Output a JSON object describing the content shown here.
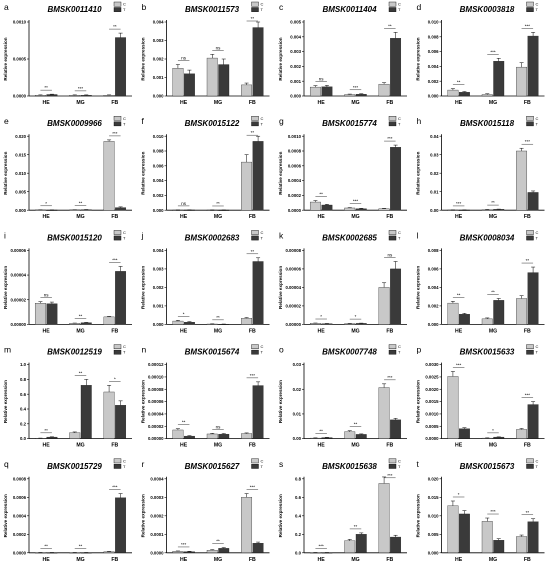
{
  "colors": {
    "control_bar": "#c8c8c8",
    "treatment_bar": "#3a3a3a",
    "axis": "#000000",
    "text": "#000000"
  },
  "legend": [
    "C",
    "T"
  ],
  "chart_data": [
    {
      "type": "bar",
      "panel_label": "a",
      "title": "BMSK0011410",
      "ylabel": "Relative expression",
      "categories": [
        "HE",
        "MG",
        "FB"
      ],
      "ylim": [
        0,
        0.001
      ],
      "ytick_labels": [
        "0.0000",
        "0.0005",
        "0.0010"
      ],
      "series": [
        {
          "name": "C",
          "values": [
            1e-05,
            1e-05,
            1e-05
          ],
          "errors": [
            5e-06,
            5e-06,
            5e-06
          ]
        },
        {
          "name": "T",
          "values": [
            2e-05,
            1e-05,
            0.00079
          ],
          "errors": [
            5e-06,
            5e-06,
            6e-05
          ]
        }
      ],
      "significance": [
        "**",
        "***",
        "**"
      ]
    },
    {
      "type": "bar",
      "panel_label": "b",
      "title": "BMSK0011573",
      "ylabel": "Relative expression",
      "categories": [
        "HE",
        "MG",
        "FB"
      ],
      "ylim": [
        0,
        0.004
      ],
      "ytick_labels": [
        "0.000",
        "0.001",
        "0.002",
        "0.003",
        "0.004"
      ],
      "series": [
        {
          "name": "C",
          "values": [
            0.0015,
            0.00205,
            0.0006
          ],
          "errors": [
            0.0002,
            0.0002,
            0.0001
          ]
        },
        {
          "name": "T",
          "values": [
            0.0012,
            0.0017,
            0.0037
          ],
          "errors": [
            0.0002,
            0.0003,
            0.0003
          ]
        }
      ],
      "significance": [
        "ns",
        "ns",
        "**"
      ]
    },
    {
      "type": "bar",
      "panel_label": "c",
      "title": "BMSK0011404",
      "ylabel": "Relative expression",
      "categories": [
        "HE",
        "MG",
        "FB"
      ],
      "ylim": [
        0,
        0.005
      ],
      "ytick_labels": [
        "0.000",
        "0.001",
        "0.002",
        "0.003",
        "0.004",
        "0.005"
      ],
      "series": [
        {
          "name": "C",
          "values": [
            0.0006,
            0.0001,
            0.0008
          ],
          "errors": [
            0.0001,
            3e-05,
            0.0001
          ]
        },
        {
          "name": "T",
          "values": [
            0.00062,
            0.00012,
            0.0039
          ],
          "errors": [
            0.0001,
            3e-05,
            0.0004
          ]
        }
      ],
      "significance": [
        "ns",
        "***",
        "**"
      ]
    },
    {
      "type": "bar",
      "panel_label": "d",
      "title": "BMSK0003818",
      "ylabel": "Relative expression",
      "categories": [
        "HE",
        "MG",
        "FB"
      ],
      "ylim": [
        0,
        0.01
      ],
      "ytick_labels": [
        "0.000",
        "0.002",
        "0.004",
        "0.006",
        "0.008",
        "0.010"
      ],
      "series": [
        {
          "name": "C",
          "values": [
            0.0008,
            0.0002,
            0.0039
          ],
          "errors": [
            0.0002,
            0.0001,
            0.0006
          ]
        },
        {
          "name": "T",
          "values": [
            0.0005,
            0.0047,
            0.0081
          ],
          "errors": [
            0.0001,
            0.0004,
            0.0005
          ]
        }
      ],
      "significance": [
        "**",
        "***",
        "***"
      ]
    },
    {
      "type": "bar",
      "panel_label": "e",
      "title": "BMSK0009966",
      "ylabel": "Relative expression",
      "categories": [
        "HE",
        "MG",
        "FB"
      ],
      "ylim": [
        0,
        0.02
      ],
      "ytick_labels": [
        "0.000",
        "0.005",
        "0.010",
        "0.015",
        "0.020"
      ],
      "series": [
        {
          "name": "C",
          "values": [
            8e-05,
            0.0001,
            0.0186
          ],
          "errors": [
            3e-05,
            3e-05,
            0.0004
          ]
        },
        {
          "name": "T",
          "values": [
            5e-05,
            0.00015,
            0.0007
          ],
          "errors": [
            2e-05,
            3e-05,
            0.0002
          ]
        }
      ],
      "significance": [
        "*",
        "**",
        "***"
      ]
    },
    {
      "type": "bar",
      "panel_label": "f",
      "title": "BMSK0015122",
      "ylabel": "Relative expression",
      "categories": [
        "HE",
        "MG",
        "FB"
      ],
      "ylim": [
        0,
        0.01
      ],
      "ytick_labels": [
        "0.000",
        "0.002",
        "0.004",
        "0.006",
        "0.008",
        "0.010"
      ],
      "series": [
        {
          "name": "C",
          "values": [
            2e-05,
            2e-05,
            0.0065
          ],
          "errors": [
            1e-05,
            1e-05,
            0.001
          ]
        },
        {
          "name": "T",
          "values": [
            3e-05,
            2e-05,
            0.0093
          ],
          "errors": [
            1e-05,
            1e-05,
            0.0007
          ]
        }
      ],
      "significance": [
        "ns",
        "**",
        "**"
      ]
    },
    {
      "type": "bar",
      "panel_label": "g",
      "title": "BMSK0015774",
      "ylabel": "Relative expression",
      "categories": [
        "HE",
        "MG",
        "FB"
      ],
      "ylim": [
        0,
        0.001
      ],
      "ytick_labels": [
        "0.0000",
        "0.0002",
        "0.0004",
        "0.0006",
        "0.0008",
        "0.0010"
      ],
      "series": [
        {
          "name": "C",
          "values": [
            0.00011,
            3e-05,
            2e-05
          ],
          "errors": [
            2e-05,
            5e-06,
            5e-06
          ]
        },
        {
          "name": "T",
          "values": [
            7e-05,
            2e-05,
            0.00085
          ],
          "errors": [
            1e-05,
            5e-06,
            3e-05
          ]
        }
      ],
      "significance": [
        "**",
        "***",
        "***"
      ]
    },
    {
      "type": "bar",
      "panel_label": "h",
      "title": "BMSK0015118",
      "ylabel": "Relative expression",
      "categories": [
        "HE",
        "MG",
        "FB"
      ],
      "ylim": [
        0,
        0.04
      ],
      "ytick_labels": [
        "0.00",
        "0.01",
        "0.02",
        "0.03",
        "0.04"
      ],
      "series": [
        {
          "name": "C",
          "values": [
            0.0001,
            0.0003,
            0.032
          ],
          "errors": [
            5e-05,
            0.0001,
            0.0015
          ]
        },
        {
          "name": "T",
          "values": [
            0.0001,
            0.0005,
            0.0096
          ],
          "errors": [
            5e-05,
            0.0001,
            0.0008
          ]
        }
      ],
      "significance": [
        "***",
        "**",
        "***"
      ]
    },
    {
      "type": "bar",
      "panel_label": "i",
      "title": "BMSK0015120",
      "ylabel": "Relative expression",
      "categories": [
        "HE",
        "MG",
        "FB"
      ],
      "ylim": [
        0,
        6e-05
      ],
      "ytick_labels": [
        "0.00000",
        "0.00002",
        "0.00004",
        "0.00006"
      ],
      "series": [
        {
          "name": "C",
          "values": [
            1.72e-05,
            9e-07,
            6.1e-06
          ],
          "errors": [
            1.2e-06,
            2e-07,
            4e-07
          ]
        },
        {
          "name": "T",
          "values": [
            1.68e-05,
            1.4e-06,
            4.3e-05
          ],
          "errors": [
            1.3e-06,
            2e-07,
            4e-06
          ]
        }
      ],
      "significance": [
        "ns",
        "**",
        "***"
      ]
    },
    {
      "type": "bar",
      "panel_label": "j",
      "title": "BMSK0002683",
      "ylabel": "Relative expression",
      "categories": [
        "HE",
        "MG",
        "FB"
      ],
      "ylim": [
        0,
        0.004
      ],
      "ytick_labels": [
        "0.000",
        "0.001",
        "0.002",
        "0.003",
        "0.004"
      ],
      "series": [
        {
          "name": "C",
          "values": [
            0.00018,
            2e-05,
            0.00033
          ],
          "errors": [
            4e-05,
            1e-05,
            4e-05
          ]
        },
        {
          "name": "T",
          "values": [
            0.00012,
            1e-05,
            0.0034
          ],
          "errors": [
            3e-05,
            1e-05,
            0.0002
          ]
        }
      ],
      "significance": [
        "*",
        "**",
        "**"
      ]
    },
    {
      "type": "bar",
      "panel_label": "k",
      "title": "BMSK0002685",
      "ylabel": "Relative expression",
      "categories": [
        "HE",
        "MG",
        "FB"
      ],
      "ylim": [
        0,
        8e-05
      ],
      "ytick_labels": [
        "0.00000",
        "0.00002",
        "0.00004",
        "0.00006",
        "0.00008"
      ],
      "series": [
        {
          "name": "C",
          "values": [
            1.2e-06,
            9e-07,
            4e-05
          ],
          "errors": [
            3e-07,
            2e-07,
            5e-06
          ]
        },
        {
          "name": "T",
          "values": [
            8e-07,
            1.1e-06,
            6e-05
          ],
          "errors": [
            2e-07,
            3e-07,
            8e-06
          ]
        }
      ],
      "significance": [
        "*",
        "*",
        "ns"
      ]
    },
    {
      "type": "bar",
      "panel_label": "l",
      "title": "BMSK0008034",
      "ylabel": "Relative expression",
      "categories": [
        "HE",
        "MG",
        "FB"
      ],
      "ylim": [
        0,
        0.008
      ],
      "ytick_labels": [
        "0.000",
        "0.002",
        "0.004",
        "0.006",
        "0.008"
      ],
      "series": [
        {
          "name": "C",
          "values": [
            0.0023,
            0.0006,
            0.0028
          ],
          "errors": [
            0.0002,
            0.0001,
            0.0003
          ]
        },
        {
          "name": "T",
          "values": [
            0.0011,
            0.0026,
            0.0056
          ],
          "errors": [
            0.0001,
            0.0002,
            0.0006
          ]
        }
      ],
      "significance": [
        "**",
        "**",
        "**"
      ]
    },
    {
      "type": "bar",
      "panel_label": "m",
      "title": "BMSK0012519",
      "ylabel": "Relative expression",
      "categories": [
        "HE",
        "MG",
        "FB"
      ],
      "ylim": [
        0,
        1.0
      ],
      "ytick_labels": [
        "0.0",
        "0.2",
        "0.4",
        "0.6",
        "0.8",
        "1.0"
      ],
      "series": [
        {
          "name": "C",
          "values": [
            0.005,
            0.08,
            0.63
          ],
          "errors": [
            0.002,
            0.01,
            0.09
          ]
        },
        {
          "name": "T",
          "values": [
            0.02,
            0.72,
            0.45
          ],
          "errors": [
            0.004,
            0.08,
            0.06
          ]
        }
      ],
      "significance": [
        "**",
        "**",
        "*"
      ]
    },
    {
      "type": "bar",
      "panel_label": "n",
      "title": "BMSK0015674",
      "ylabel": "Relative expression",
      "categories": [
        "HE",
        "MG",
        "FB"
      ],
      "ylim": [
        0,
        0.00012
      ],
      "ytick_labels": [
        "0.00000",
        "0.00002",
        "0.00004",
        "0.00006",
        "0.00008",
        "0.00010",
        "0.00012"
      ],
      "series": [
        {
          "name": "C",
          "values": [
            1.4e-05,
            7.5e-06,
            8.2e-06
          ],
          "errors": [
            2e-06,
            1e-06,
            1e-06
          ]
        },
        {
          "name": "T",
          "values": [
            4e-06,
            7.2e-06,
            8.6e-05
          ],
          "errors": [
            8e-07,
            1e-06,
            6e-06
          ]
        }
      ],
      "significance": [
        "**",
        "ns",
        "***"
      ]
    },
    {
      "type": "bar",
      "panel_label": "o",
      "title": "BMSK0007748",
      "ylabel": "Relative expression",
      "categories": [
        "HE",
        "MG",
        "FB"
      ],
      "ylim": [
        0,
        0.03
      ],
      "ytick_labels": [
        "0.00",
        "0.01",
        "0.02",
        "0.03"
      ],
      "series": [
        {
          "name": "C",
          "values": [
            0.0002,
            0.0028,
            0.0207
          ],
          "errors": [
            0.0001,
            0.0004,
            0.0015
          ]
        },
        {
          "name": "T",
          "values": [
            0.0004,
            0.0017,
            0.0076
          ],
          "errors": [
            0.0001,
            0.0002,
            0.0006
          ]
        }
      ],
      "significance": [
        "**",
        "**",
        "***"
      ]
    },
    {
      "type": "bar",
      "panel_label": "p",
      "title": "BMSK0015633",
      "ylabel": "Relative expression",
      "categories": [
        "HE",
        "MG",
        "FB"
      ],
      "ylim": [
        0,
        0.003
      ],
      "ytick_labels": [
        "0.0000",
        "0.0005",
        "0.0010",
        "0.0015",
        "0.0020",
        "0.0025",
        "0.0030"
      ],
      "series": [
        {
          "name": "C",
          "values": [
            0.00252,
            2e-05,
            0.00037
          ],
          "errors": [
            0.0002,
            1e-05,
            4e-05
          ]
        },
        {
          "name": "T",
          "values": [
            0.0004,
            6e-05,
            0.00138
          ],
          "errors": [
            4e-05,
            1e-05,
            0.00012
          ]
        }
      ],
      "significance": [
        "***",
        "*",
        "***"
      ]
    },
    {
      "type": "bar",
      "panel_label": "q",
      "title": "BMSK0015729",
      "ylabel": "Relative expression",
      "categories": [
        "HE",
        "MG",
        "FB"
      ],
      "ylim": [
        0,
        0.0008
      ],
      "ytick_labels": [
        "0.0000",
        "0.0002",
        "0.0004",
        "0.0006",
        "0.0008"
      ],
      "series": [
        {
          "name": "C",
          "values": [
            3e-06,
            3e-06,
            1.2e-05
          ],
          "errors": [
            1e-06,
            1e-06,
            3e-06
          ]
        },
        {
          "name": "T",
          "values": [
            2e-06,
            2e-06,
            0.000595
          ],
          "errors": [
            1e-06,
            1e-06,
            4.5e-05
          ]
        }
      ],
      "significance": [
        "**",
        "**",
        "***"
      ]
    },
    {
      "type": "bar",
      "panel_label": "r",
      "title": "BMSK0015627",
      "ylabel": "Relative expression",
      "categories": [
        "HE",
        "MG",
        "FB"
      ],
      "ylim": [
        0,
        0.0004
      ],
      "ytick_labels": [
        "0.0000",
        "0.0001",
        "0.0002",
        "0.0003",
        "0.0004"
      ],
      "series": [
        {
          "name": "C",
          "values": [
            8e-06,
            1.4e-05,
            0.0003
          ],
          "errors": [
            2e-06,
            3e-06,
            2e-05
          ]
        },
        {
          "name": "T",
          "values": [
            6e-06,
            2.4e-05,
            5.2e-05
          ],
          "errors": [
            2e-06,
            4e-06,
            6e-06
          ]
        }
      ],
      "significance": [
        "***",
        "**",
        "***"
      ]
    },
    {
      "type": "bar",
      "panel_label": "s",
      "title": "BMSK0015638",
      "ylabel": "Relative expression",
      "categories": [
        "HE",
        "MG",
        "FB"
      ],
      "ylim": [
        0,
        0.8
      ],
      "ytick_labels": [
        "0.0",
        "0.2",
        "0.4",
        "0.6",
        "0.8"
      ],
      "series": [
        {
          "name": "C",
          "values": [
            0.003,
            0.13,
            0.75
          ],
          "errors": [
            0.001,
            0.015,
            0.07
          ]
        },
        {
          "name": "T",
          "values": [
            0.002,
            0.2,
            0.17
          ],
          "errors": [
            0.001,
            0.015,
            0.02
          ]
        }
      ],
      "significance": [
        "***",
        "**",
        "***"
      ]
    },
    {
      "type": "bar",
      "panel_label": "t",
      "title": "BMSK0015673",
      "ylabel": "Relative expression",
      "categories": [
        "HE",
        "MG",
        "FB"
      ],
      "ylim": [
        0,
        0.02
      ],
      "ytick_labels": [
        "0.000",
        "0.005",
        "0.010",
        "0.015",
        "0.020"
      ],
      "series": [
        {
          "name": "C",
          "values": [
            0.0127,
            0.0085,
            0.0044
          ],
          "errors": [
            0.0013,
            0.0009,
            0.0004
          ]
        },
        {
          "name": "T",
          "values": [
            0.0105,
            0.0034,
            0.0084
          ],
          "errors": [
            0.0009,
            0.0004,
            0.0008
          ]
        }
      ],
      "significance": [
        "*",
        "***",
        "**"
      ]
    }
  ]
}
